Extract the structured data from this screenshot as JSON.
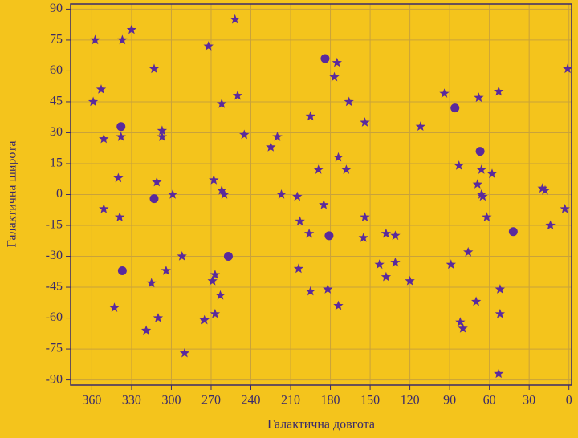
{
  "chart_data": {
    "type": "scatter",
    "xlabel": "Галактична довгота",
    "ylabel": "Галактична широта",
    "xlim": [
      376,
      -2
    ],
    "ylim": [
      -92.5,
      92.5
    ],
    "xticks": [
      360,
      330,
      300,
      270,
      240,
      210,
      180,
      150,
      120,
      90,
      60,
      30,
      0
    ],
    "yticks": [
      90,
      75,
      60,
      45,
      30,
      15,
      0,
      -15,
      -30,
      -45,
      -60,
      -75,
      -90
    ],
    "grid": true,
    "series": [
      {
        "marker": "star",
        "color": "#5a2a9c",
        "x": [
          357.5,
          337,
          330,
          353,
          359,
          313,
          351,
          338,
          307,
          307,
          340,
          311,
          299,
          351,
          339,
          315,
          304,
          292,
          343,
          310,
          319,
          290,
          272,
          252,
          262,
          250,
          245,
          268,
          262,
          260,
          267,
          269,
          263,
          267,
          275,
          225,
          220,
          217,
          205,
          203,
          196,
          204,
          195,
          195,
          189,
          185,
          182,
          174,
          175,
          177,
          174,
          166,
          168,
          154,
          154,
          155,
          138,
          131,
          143,
          138,
          131,
          120,
          112,
          94,
          89,
          76,
          82,
          80,
          70,
          83,
          68,
          53,
          66,
          69,
          66,
          65,
          58,
          62,
          52,
          52,
          53,
          20,
          18,
          14,
          3,
          1
        ],
        "values": [
          75,
          75,
          80,
          51,
          45,
          61,
          27,
          28,
          31,
          28,
          8,
          6,
          0,
          -7,
          -11,
          -43,
          -37,
          -30,
          -55,
          -60,
          -66,
          -77,
          72,
          85,
          44,
          48,
          29,
          7,
          2,
          0,
          -39,
          -42,
          -49,
          -58,
          -61,
          23,
          28,
          0,
          -1,
          -13,
          -19,
          -36,
          -47,
          38,
          12,
          -5,
          -46,
          -54,
          64,
          57,
          18,
          45,
          12,
          35,
          -11,
          -21,
          -19,
          -20,
          -34,
          -40,
          -33,
          -42,
          33,
          49,
          -34,
          -28,
          -62,
          -65,
          -52,
          14,
          47,
          50,
          12,
          5,
          0,
          -1,
          10,
          -11,
          -46,
          -58,
          -87,
          3,
          2,
          -15,
          -7,
          61
        ]
      },
      {
        "marker": "circle",
        "color": "#5a2a9c",
        "x": [
          338,
          313,
          337,
          257,
          184,
          181,
          86,
          67,
          42
        ],
        "values": [
          33,
          -2,
          -37,
          -30,
          66,
          -20,
          42,
          21,
          -18
        ]
      }
    ]
  }
}
